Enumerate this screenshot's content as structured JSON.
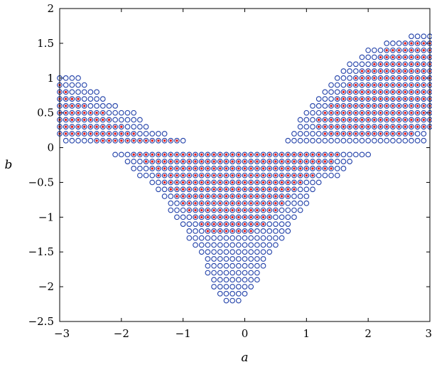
{
  "chart_data": {
    "type": "scatter",
    "title": "",
    "xlabel": "a",
    "ylabel": "b",
    "xlim": [
      -3,
      3
    ],
    "ylim": [
      -2.5,
      2
    ],
    "xticks": [
      "-3",
      "-2",
      "-1",
      "0",
      "1",
      "2",
      "3"
    ],
    "yticks": [
      "-2.5",
      "-2",
      "-1.5",
      "-1",
      "-0.5",
      "0",
      "0.5",
      "1",
      "1.5",
      "2"
    ],
    "grid": false,
    "legend": "none",
    "grid_spacing": [
      0.1,
      0.1
    ],
    "series": [
      {
        "marker": "open-circle",
        "color": "#1f3fa8",
        "region": [
          {
            "b": 1.0,
            "a_ranges": [
              [
                -3.0,
                -2.7
              ]
            ]
          },
          {
            "b": 0.9,
            "a_ranges": [
              [
                -3.0,
                -2.6
              ]
            ]
          },
          {
            "b": 0.8,
            "a_ranges": [
              [
                -3.0,
                -2.4
              ]
            ]
          },
          {
            "b": 0.7,
            "a_ranges": [
              [
                -3.0,
                -2.3
              ]
            ]
          },
          {
            "b": 0.6,
            "a_ranges": [
              [
                -3.0,
                -2.1
              ]
            ]
          },
          {
            "b": 0.5,
            "a_ranges": [
              [
                -3.0,
                -1.8
              ]
            ]
          },
          {
            "b": 0.4,
            "a_ranges": [
              [
                -3.0,
                -1.7
              ]
            ]
          },
          {
            "b": 0.3,
            "a_ranges": [
              [
                -3.0,
                -1.6
              ]
            ]
          },
          {
            "b": 0.2,
            "a_ranges": [
              [
                -3.0,
                -1.3
              ]
            ]
          },
          {
            "b": 0.1,
            "a_ranges": [
              [
                -2.9,
                -1.0
              ]
            ]
          },
          {
            "b": 1.6,
            "a_ranges": [
              [
                2.7,
                3.0
              ]
            ]
          },
          {
            "b": 1.5,
            "a_ranges": [
              [
                2.3,
                3.0
              ]
            ]
          },
          {
            "b": 1.4,
            "a_ranges": [
              [
                2.0,
                3.0
              ]
            ]
          },
          {
            "b": 1.3,
            "a_ranges": [
              [
                1.9,
                3.0
              ]
            ]
          },
          {
            "b": 1.2,
            "a_ranges": [
              [
                1.7,
                3.0
              ]
            ]
          },
          {
            "b": 1.1,
            "a_ranges": [
              [
                1.6,
                3.0
              ]
            ]
          },
          {
            "b": 1.0,
            "a_ranges": [
              [
                1.5,
                3.0
              ]
            ]
          },
          {
            "b": 0.9,
            "a_ranges": [
              [
                1.4,
                3.0
              ]
            ]
          },
          {
            "b": 0.8,
            "a_ranges": [
              [
                1.3,
                3.0
              ]
            ]
          },
          {
            "b": 0.7,
            "a_ranges": [
              [
                1.2,
                3.0
              ]
            ]
          },
          {
            "b": 0.6,
            "a_ranges": [
              [
                1.1,
                3.0
              ]
            ]
          },
          {
            "b": 0.5,
            "a_ranges": [
              [
                1.0,
                3.0
              ]
            ]
          },
          {
            "b": 0.4,
            "a_ranges": [
              [
                0.9,
                3.0
              ]
            ]
          },
          {
            "b": 0.3,
            "a_ranges": [
              [
                0.9,
                3.0
              ]
            ]
          },
          {
            "b": 0.2,
            "a_ranges": [
              [
                0.8,
                2.9
              ]
            ]
          },
          {
            "b": 0.1,
            "a_ranges": [
              [
                0.7,
                2.9
              ]
            ]
          },
          {
            "b": -0.1,
            "a_ranges": [
              [
                -2.1,
                2.0
              ]
            ]
          },
          {
            "b": -0.2,
            "a_ranges": [
              [
                -1.9,
                1.7
              ]
            ]
          },
          {
            "b": -0.3,
            "a_ranges": [
              [
                -1.8,
                1.6
              ]
            ]
          },
          {
            "b": -0.4,
            "a_ranges": [
              [
                -1.7,
                1.5
              ]
            ]
          },
          {
            "b": -0.5,
            "a_ranges": [
              [
                -1.5,
                1.2
              ]
            ]
          },
          {
            "b": -0.6,
            "a_ranges": [
              [
                -1.4,
                1.1
              ]
            ]
          },
          {
            "b": -0.7,
            "a_ranges": [
              [
                -1.3,
                1.0
              ]
            ]
          },
          {
            "b": -0.8,
            "a_ranges": [
              [
                -1.2,
                1.0
              ]
            ]
          },
          {
            "b": -0.9,
            "a_ranges": [
              [
                -1.2,
                0.9
              ]
            ]
          },
          {
            "b": -1.0,
            "a_ranges": [
              [
                -1.1,
                0.8
              ]
            ]
          },
          {
            "b": -1.1,
            "a_ranges": [
              [
                -1.0,
                0.7
              ]
            ]
          },
          {
            "b": -1.2,
            "a_ranges": [
              [
                -0.9,
                0.7
              ]
            ]
          },
          {
            "b": -1.3,
            "a_ranges": [
              [
                -0.9,
                0.6
              ]
            ]
          },
          {
            "b": -1.4,
            "a_ranges": [
              [
                -0.8,
                0.5
              ]
            ]
          },
          {
            "b": -1.5,
            "a_ranges": [
              [
                -0.7,
                0.4
              ]
            ]
          },
          {
            "b": -1.6,
            "a_ranges": [
              [
                -0.6,
                0.3
              ]
            ]
          },
          {
            "b": -1.7,
            "a_ranges": [
              [
                -0.6,
                0.3
              ]
            ]
          },
          {
            "b": -1.8,
            "a_ranges": [
              [
                -0.6,
                0.2
              ]
            ]
          },
          {
            "b": -1.9,
            "a_ranges": [
              [
                -0.5,
                0.2
              ]
            ]
          },
          {
            "b": -2.0,
            "a_ranges": [
              [
                -0.5,
                0.1
              ]
            ]
          },
          {
            "b": -2.1,
            "a_ranges": [
              [
                -0.4,
                0.0
              ]
            ]
          },
          {
            "b": -2.2,
            "a_ranges": [
              [
                -0.3,
                -0.1
              ]
            ]
          }
        ]
      },
      {
        "marker": "dot",
        "color": "#e02020",
        "region": [
          {
            "b": 0.9,
            "a_ranges": [
              [
                -3.0,
                -3.0
              ]
            ]
          },
          {
            "b": 0.8,
            "a_ranges": [
              [
                -3.0,
                -2.9
              ]
            ]
          },
          {
            "b": 0.7,
            "a_ranges": [
              [
                -3.0,
                -2.7
              ]
            ]
          },
          {
            "b": 0.6,
            "a_ranges": [
              [
                -3.0,
                -2.6
              ]
            ]
          },
          {
            "b": 0.5,
            "a_ranges": [
              [
                -3.0,
                -2.3
              ]
            ]
          },
          {
            "b": 0.4,
            "a_ranges": [
              [
                -3.0,
                -2.2
              ]
            ]
          },
          {
            "b": 0.3,
            "a_ranges": [
              [
                -3.0,
                -2.0
              ]
            ]
          },
          {
            "b": 0.2,
            "a_ranges": [
              [
                -3.0,
                -1.8
              ]
            ]
          },
          {
            "b": 0.1,
            "a_ranges": [
              [
                -2.4,
                -1.1
              ]
            ]
          },
          {
            "b": 1.5,
            "a_ranges": [
              [
                2.6,
                3.0
              ]
            ]
          },
          {
            "b": 1.4,
            "a_ranges": [
              [
                2.3,
                3.0
              ]
            ]
          },
          {
            "b": 1.3,
            "a_ranges": [
              [
                2.2,
                3.0
              ]
            ]
          },
          {
            "b": 1.2,
            "a_ranges": [
              [
                2.1,
                3.0
              ]
            ]
          },
          {
            "b": 1.1,
            "a_ranges": [
              [
                1.9,
                3.0
              ]
            ]
          },
          {
            "b": 1.0,
            "a_ranges": [
              [
                1.8,
                3.0
              ]
            ]
          },
          {
            "b": 0.9,
            "a_ranges": [
              [
                1.7,
                3.0
              ]
            ]
          },
          {
            "b": 0.8,
            "a_ranges": [
              [
                1.6,
                3.0
              ]
            ]
          },
          {
            "b": 0.7,
            "a_ranges": [
              [
                1.5,
                3.0
              ]
            ]
          },
          {
            "b": 0.6,
            "a_ranges": [
              [
                1.4,
                3.0
              ]
            ]
          },
          {
            "b": 0.5,
            "a_ranges": [
              [
                1.3,
                3.0
              ]
            ]
          },
          {
            "b": 0.4,
            "a_ranges": [
              [
                1.2,
                3.0
              ]
            ]
          },
          {
            "b": 0.3,
            "a_ranges": [
              [
                1.2,
                3.0
              ]
            ]
          },
          {
            "b": 0.2,
            "a_ranges": [
              [
                1.3,
                2.7
              ]
            ]
          },
          {
            "b": -0.1,
            "a_ranges": [
              [
                -1.8,
                1.5
              ]
            ]
          },
          {
            "b": -0.2,
            "a_ranges": [
              [
                -1.6,
                1.4
              ]
            ]
          },
          {
            "b": -0.3,
            "a_ranges": [
              [
                -1.5,
                1.4
              ]
            ]
          },
          {
            "b": -0.4,
            "a_ranges": [
              [
                -1.4,
                1.1
              ]
            ]
          },
          {
            "b": -0.5,
            "a_ranges": [
              [
                -1.3,
                0.9
              ]
            ]
          },
          {
            "b": -0.6,
            "a_ranges": [
              [
                -1.2,
                0.8
              ]
            ]
          },
          {
            "b": -0.7,
            "a_ranges": [
              [
                -1.1,
                0.7
              ]
            ]
          },
          {
            "b": -0.8,
            "a_ranges": [
              [
                -1.0,
                0.6
              ]
            ]
          },
          {
            "b": -0.9,
            "a_ranges": [
              [
                -0.9,
                0.5
              ]
            ]
          },
          {
            "b": -1.0,
            "a_ranges": [
              [
                -0.8,
                0.4
              ]
            ]
          },
          {
            "b": -1.1,
            "a_ranges": [
              [
                -0.7,
                0.3
              ]
            ]
          },
          {
            "b": -1.2,
            "a_ranges": [
              [
                -0.6,
                0.1
              ]
            ]
          }
        ]
      }
    ]
  }
}
